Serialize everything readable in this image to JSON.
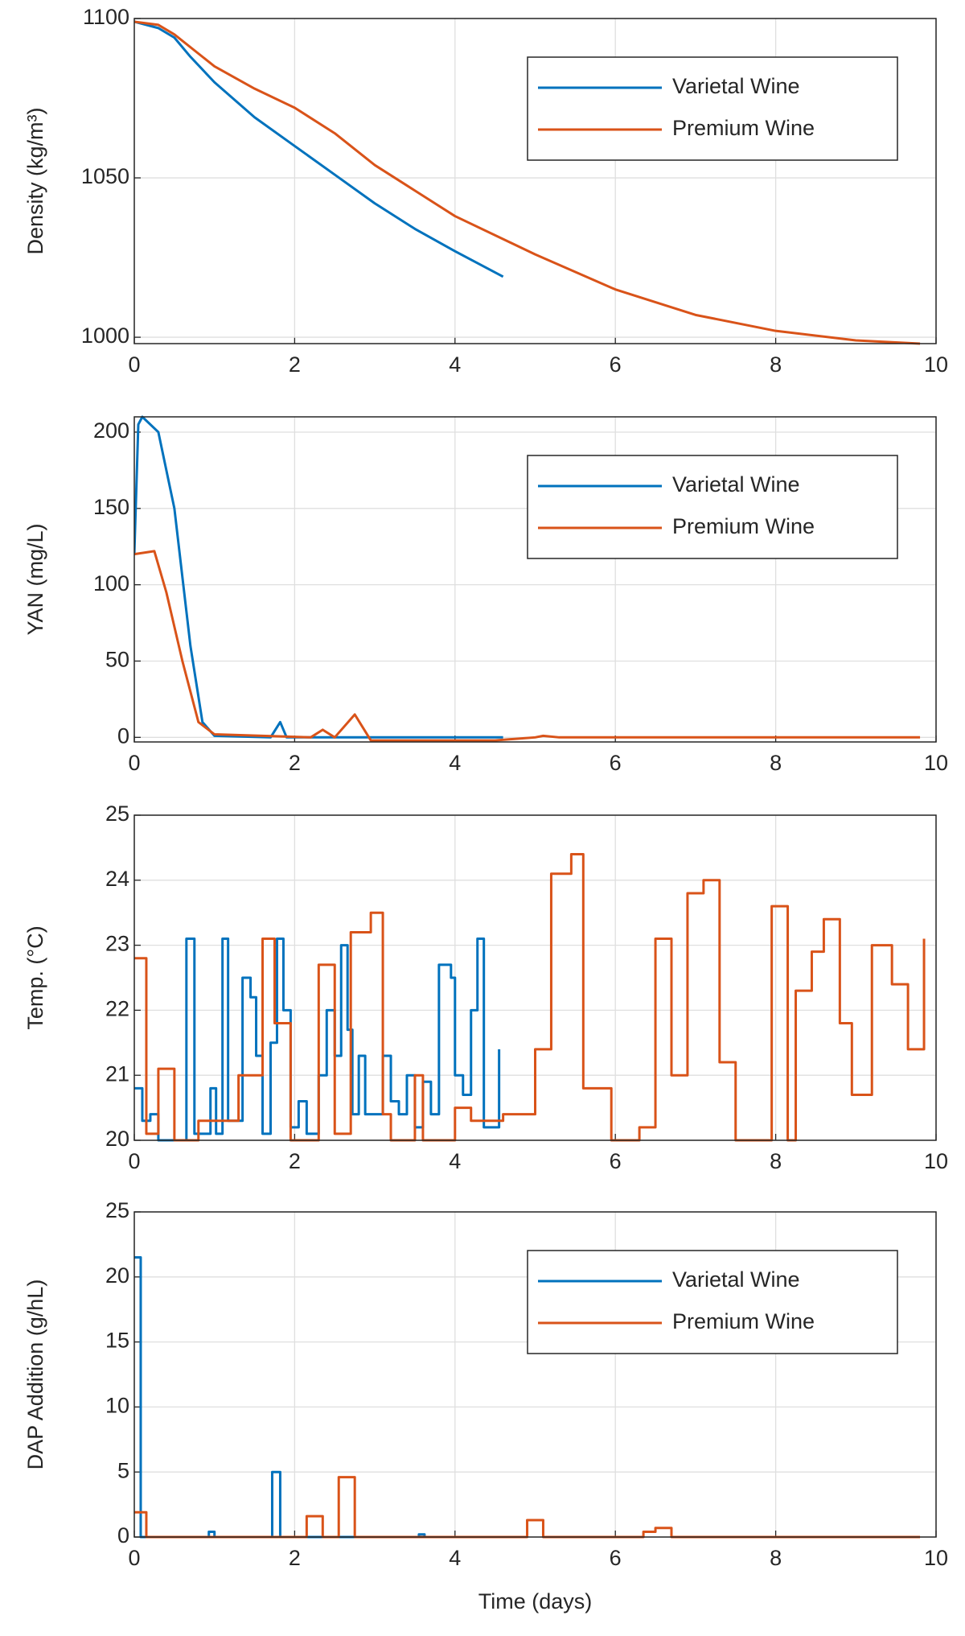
{
  "chart_data": [
    {
      "type": "line",
      "ylabel": "Density (kg/m³)",
      "xlim": [
        0,
        10
      ],
      "xticks": [
        0,
        2,
        4,
        6,
        8,
        10
      ],
      "ylim": [
        998,
        1100
      ],
      "yticks": [
        1000,
        1050,
        1100
      ],
      "grid": true,
      "legend": "upper right",
      "series": [
        {
          "name": "Varietal Wine",
          "color": "#0072bd",
          "x": [
            0,
            0.3,
            0.5,
            0.7,
            1,
            1.5,
            2,
            2.5,
            3,
            3.5,
            4,
            4.6
          ],
          "values": [
            1099,
            1097,
            1094,
            1088,
            1080,
            1069,
            1060,
            1051,
            1042,
            1034,
            1027,
            1019
          ]
        },
        {
          "name": "Premium Wine",
          "color": "#d95319",
          "x": [
            0,
            0.3,
            0.5,
            1,
            1.5,
            2,
            2.5,
            3,
            3.5,
            4,
            5,
            6,
            7,
            8,
            9,
            9.8
          ],
          "values": [
            1099,
            1098,
            1095,
            1085,
            1078,
            1072,
            1064,
            1054,
            1046,
            1038,
            1026,
            1015,
            1007,
            1002,
            999,
            998
          ]
        }
      ]
    },
    {
      "type": "line",
      "ylabel": "YAN (mg/L)",
      "xlim": [
        0,
        10
      ],
      "xticks": [
        0,
        2,
        4,
        6,
        8,
        10
      ],
      "ylim": [
        -3,
        210
      ],
      "yticks": [
        0,
        50,
        100,
        150,
        200
      ],
      "grid": true,
      "legend": "upper right",
      "series": [
        {
          "name": "Varietal Wine",
          "color": "#0072bd",
          "x": [
            0,
            0.05,
            0.1,
            0.3,
            0.5,
            0.7,
            0.85,
            1,
            1.7,
            1.82,
            1.9,
            4.6
          ],
          "values": [
            120,
            205,
            210,
            200,
            150,
            60,
            10,
            1,
            0,
            10,
            0,
            0
          ]
        },
        {
          "name": "Premium Wine",
          "color": "#d95319",
          "x": [
            0,
            0.25,
            0.4,
            0.6,
            0.8,
            1,
            2.2,
            2.35,
            2.5,
            2.75,
            2.95,
            4.5,
            5,
            5.1,
            5.3,
            9.8
          ],
          "values": [
            120,
            122,
            95,
            50,
            10,
            2,
            0,
            5,
            0,
            15,
            -2,
            -2,
            0,
            1,
            0,
            0
          ]
        }
      ]
    },
    {
      "type": "line",
      "ylabel": "Temp. (°C)",
      "xlim": [
        0,
        10
      ],
      "xticks": [
        0,
        2,
        4,
        6,
        8,
        10
      ],
      "ylim": [
        20,
        25
      ],
      "yticks": [
        20,
        21,
        22,
        23,
        24,
        25
      ],
      "grid": true,
      "series": [
        {
          "name": "Varietal Wine",
          "color": "#0072bd",
          "x": [
            0,
            0.1,
            0.1,
            0.2,
            0.2,
            0.3,
            0.3,
            0.65,
            0.65,
            0.75,
            0.75,
            0.95,
            0.95,
            1.02,
            1.02,
            1.1,
            1.1,
            1.17,
            1.17,
            1.35,
            1.35,
            1.45,
            1.45,
            1.52,
            1.52,
            1.6,
            1.6,
            1.7,
            1.7,
            1.78,
            1.78,
            1.86,
            1.86,
            1.95,
            1.95,
            2.05,
            2.05,
            2.15,
            2.15,
            2.3,
            2.3,
            2.4,
            2.4,
            2.5,
            2.5,
            2.58,
            2.58,
            2.66,
            2.66,
            2.72,
            2.72,
            2.8,
            2.8,
            2.88,
            2.88,
            3.1,
            3.1,
            3.2,
            3.2,
            3.3,
            3.3,
            3.4,
            3.4,
            3.5,
            3.5,
            3.6,
            3.6,
            3.7,
            3.7,
            3.8,
            3.8,
            3.95,
            3.95,
            4.0,
            4.0,
            4.1,
            4.1,
            4.2,
            4.2,
            4.28,
            4.28,
            4.36,
            4.36,
            4.55,
            4.55
          ],
          "values": [
            20.8,
            20.8,
            20.3,
            20.3,
            20.4,
            20.4,
            20.0,
            20.0,
            23.1,
            23.1,
            20.1,
            20.1,
            20.8,
            20.8,
            20.1,
            20.1,
            23.1,
            23.1,
            20.3,
            20.3,
            22.5,
            22.5,
            22.2,
            22.2,
            21.3,
            21.3,
            20.1,
            20.1,
            21.5,
            21.5,
            23.1,
            23.1,
            22.0,
            22.0,
            20.2,
            20.2,
            20.6,
            20.6,
            20.1,
            20.1,
            21.0,
            21.0,
            22.0,
            22.0,
            21.3,
            21.3,
            23.0,
            23.0,
            21.7,
            21.7,
            20.4,
            20.4,
            21.3,
            21.3,
            20.4,
            20.4,
            21.3,
            21.3,
            20.6,
            20.6,
            20.4,
            20.4,
            21.0,
            21.0,
            20.2,
            20.2,
            20.9,
            20.9,
            20.4,
            20.4,
            22.7,
            22.7,
            22.5,
            22.5,
            21.0,
            21.0,
            20.7,
            20.7,
            22.0,
            22.0,
            23.1,
            23.1,
            20.2,
            20.2,
            21.4
          ]
        },
        {
          "name": "Premium Wine",
          "color": "#d95319",
          "x": [
            0,
            0.15,
            0.15,
            0.3,
            0.3,
            0.5,
            0.5,
            0.8,
            0.8,
            1.3,
            1.3,
            1.6,
            1.6,
            1.75,
            1.75,
            1.95,
            1.95,
            2.3,
            2.3,
            2.5,
            2.5,
            2.7,
            2.7,
            2.95,
            2.95,
            3.1,
            3.1,
            3.2,
            3.2,
            3.5,
            3.5,
            3.6,
            3.6,
            4.0,
            4.0,
            4.2,
            4.2,
            4.6,
            4.6,
            5.0,
            5.0,
            5.2,
            5.2,
            5.45,
            5.45,
            5.6,
            5.6,
            5.95,
            5.95,
            6.3,
            6.3,
            6.5,
            6.5,
            6.7,
            6.7,
            6.9,
            6.9,
            7.1,
            7.1,
            7.3,
            7.3,
            7.5,
            7.5,
            7.95,
            7.95,
            8.15,
            8.15,
            8.25,
            8.25,
            8.45,
            8.45,
            8.6,
            8.6,
            8.8,
            8.8,
            8.95,
            8.95,
            9.2,
            9.2,
            9.45,
            9.45,
            9.65,
            9.65,
            9.85,
            9.85
          ],
          "values": [
            22.8,
            22.8,
            20.1,
            20.1,
            21.1,
            21.1,
            20.0,
            20.0,
            20.3,
            20.3,
            21.0,
            21.0,
            23.1,
            23.1,
            21.8,
            21.8,
            20.0,
            20.0,
            22.7,
            22.7,
            20.1,
            20.1,
            23.2,
            23.2,
            23.5,
            23.5,
            20.4,
            20.4,
            20.0,
            20.0,
            21.0,
            21.0,
            20.0,
            20.0,
            20.5,
            20.5,
            20.3,
            20.3,
            20.4,
            20.4,
            21.4,
            21.4,
            24.1,
            24.1,
            24.4,
            24.4,
            20.8,
            20.8,
            20.0,
            20.0,
            20.2,
            20.2,
            23.1,
            23.1,
            21.0,
            21.0,
            23.8,
            23.8,
            24.0,
            24.0,
            21.2,
            21.2,
            20.0,
            20.0,
            23.6,
            23.6,
            20.0,
            20.0,
            22.3,
            22.3,
            22.9,
            22.9,
            23.4,
            23.4,
            21.8,
            21.8,
            20.7,
            20.7,
            23.0,
            23.0,
            22.4,
            22.4,
            21.4,
            21.4,
            23.1
          ]
        }
      ]
    },
    {
      "type": "line",
      "ylabel": "DAP Addition (g/hL)",
      "xlabel": "Time (days)",
      "xlim": [
        0,
        10
      ],
      "xticks": [
        0,
        2,
        4,
        6,
        8,
        10
      ],
      "ylim": [
        0,
        25
      ],
      "yticks": [
        0,
        5,
        10,
        15,
        20,
        25
      ],
      "grid": true,
      "legend": "upper right",
      "series": [
        {
          "name": "Varietal Wine",
          "color": "#0072bd",
          "x": [
            0,
            0.08,
            0.08,
            0.93,
            0.93,
            1.0,
            1.0,
            1.72,
            1.72,
            1.82,
            1.82,
            3.55,
            3.55,
            3.62,
            3.62,
            4.6
          ],
          "values": [
            21.5,
            21.5,
            0,
            0,
            0.4,
            0.4,
            0,
            0,
            5.0,
            5.0,
            0,
            0,
            0.2,
            0.2,
            0,
            0
          ]
        },
        {
          "name": "Premium Wine",
          "color": "#d95319",
          "x": [
            0,
            0.15,
            0.15,
            2.15,
            2.15,
            2.35,
            2.35,
            2.55,
            2.55,
            2.75,
            2.75,
            4.9,
            4.9,
            5.1,
            5.1,
            6.35,
            6.35,
            6.5,
            6.5,
            6.7,
            6.7,
            9.8
          ],
          "values": [
            1.9,
            1.9,
            0,
            0,
            1.6,
            1.6,
            0,
            0,
            4.6,
            4.6,
            0,
            0,
            1.3,
            1.3,
            0,
            0,
            0.4,
            0.4,
            0.7,
            0.7,
            0,
            0
          ]
        }
      ]
    }
  ]
}
